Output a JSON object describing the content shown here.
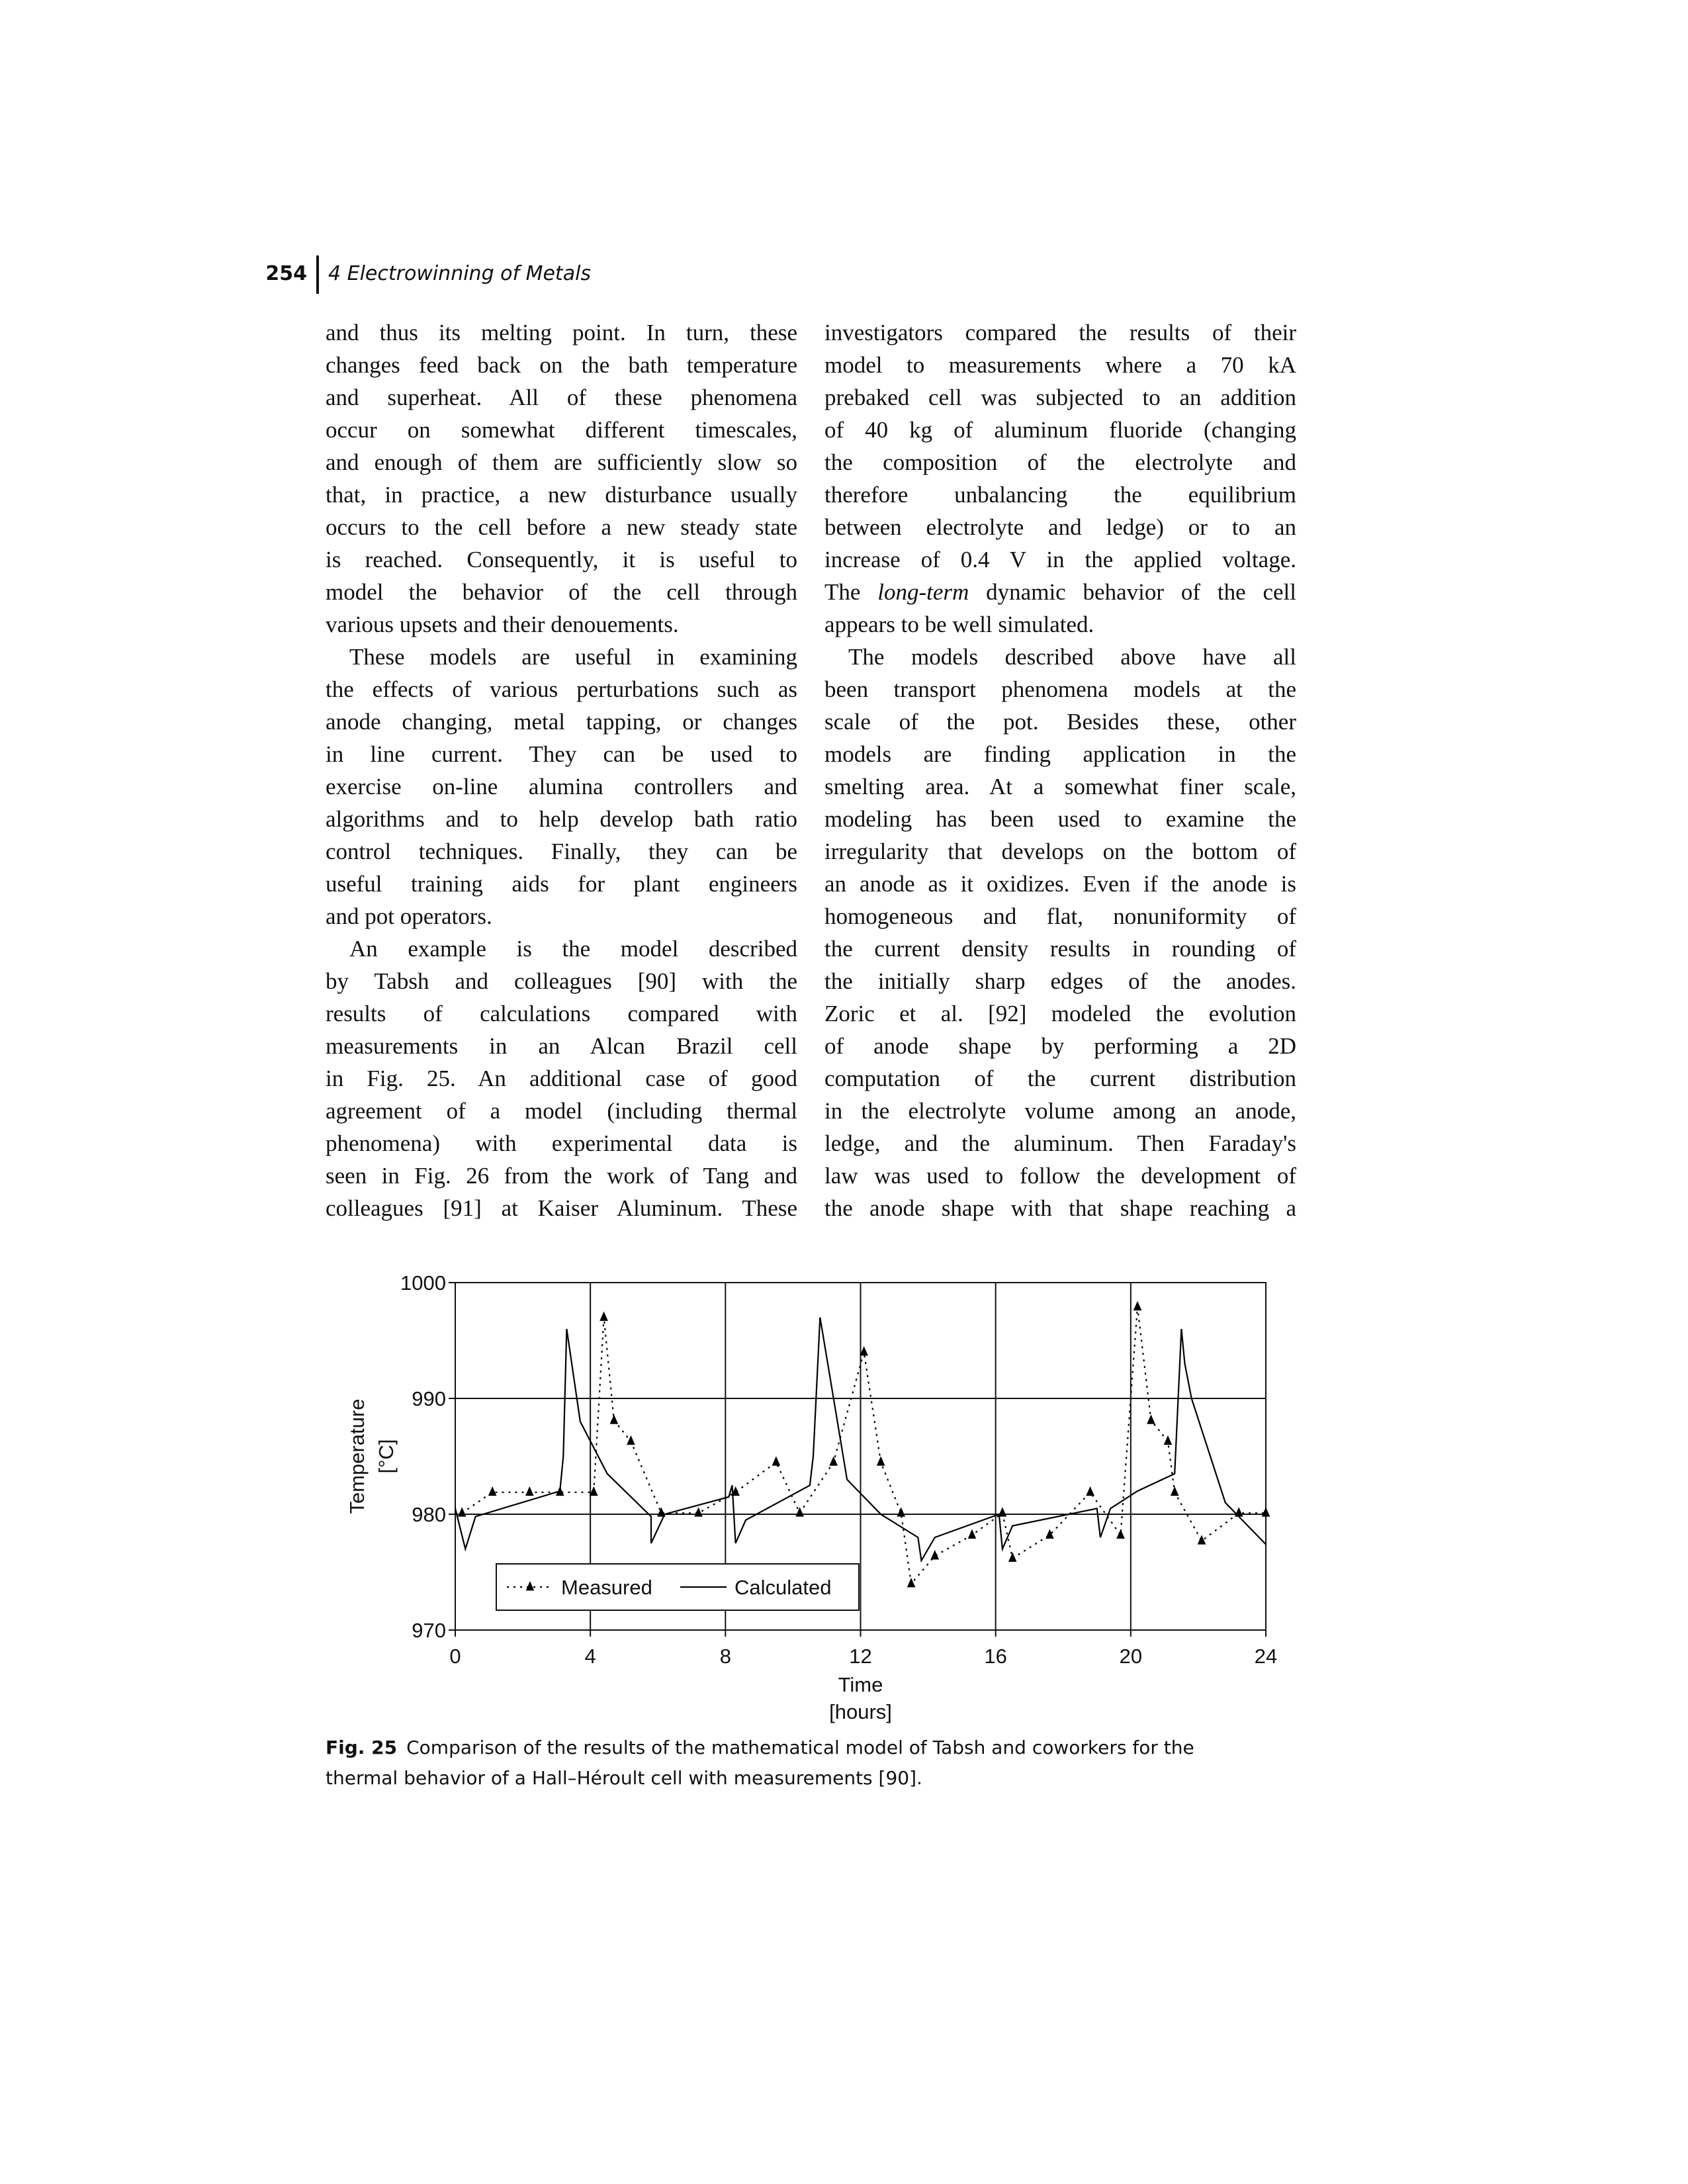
{
  "header": {
    "page_number": "254",
    "running_title": "4 Electrowinning of Metals"
  },
  "columns": [
    [
      [
        "and thus its melting point. In turn, these",
        "changes feed back on the bath temperature",
        "and superheat. All of these phenomena",
        "occur on somewhat different timescales,",
        "and enough of them are sufficiently slow so",
        "that, in practice, a new disturbance usually",
        "occurs to the cell before a new steady state",
        "is reached. Consequently, it is useful to",
        "model the behavior of the cell through",
        "various upsets and their denouements."
      ],
      [
        "These models are useful in examining",
        "the effects of various perturbations such as",
        "anode changing, metal tapping, or changes",
        "in line current. They can be used to",
        "exercise on-line alumina controllers and",
        "algorithms and to help develop bath ratio",
        "control techniques. Finally, they can be",
        "useful training aids for plant engineers",
        "and pot operators."
      ],
      [
        "An example is the model described",
        "by Tabsh and colleagues [90] with the",
        "results of calculations compared with",
        "measurements in an Alcan Brazil cell",
        "in Fig. 25. An additional case of good",
        "agreement of a model (including thermal",
        "phenomena) with experimental data is",
        "seen in Fig. 26 from the work of Tang and",
        "colleagues [91] at Kaiser Aluminum. These"
      ]
    ],
    [
      [
        "investigators compared the results of their",
        "model to measurements where a 70 kA",
        "prebaked cell was subjected to an addition",
        "of 40 kg of aluminum fluoride (changing",
        "the composition of the electrolyte and",
        "therefore unbalancing the equilibrium",
        "between electrolyte and ledge) or to an",
        "increase of 0.4 V in the applied voltage.",
        [
          "The ",
          "long-term",
          " dynamic behavior of the cell"
        ],
        "appears to be well simulated."
      ],
      [
        "The models described above have all",
        "been transport phenomena models at the",
        "scale of the pot. Besides these, other",
        "models are finding application in the",
        "smelting area. At a somewhat finer scale,",
        "modeling has been used to examine the",
        "irregularity that develops on the bottom of",
        "an anode as it oxidizes. Even if the anode is",
        "homogeneous and flat, nonuniformity of",
        "the current density results in rounding of",
        "the initially sharp edges of the anodes.",
        "Zoric et al. [92] modeled the evolution",
        "of anode shape by performing a 2D",
        "computation of the current distribution",
        "in the electrolyte volume among an anode,",
        "ledge, and the aluminum. Then Faraday's",
        "law was used to follow the development of",
        "the anode shape with that shape reaching a"
      ]
    ]
  ],
  "chart_data": {
    "type": "line",
    "xlabel": [
      "Time",
      "[hours]"
    ],
    "ylabel": [
      "Temperature",
      "[°C]"
    ],
    "xlim": [
      0,
      24
    ],
    "xticks": [
      0,
      4,
      8,
      12,
      16,
      20,
      24
    ],
    "ylim": [
      970,
      1000
    ],
    "yticks": [
      970,
      980,
      990,
      1000
    ],
    "grid": true,
    "legend": "lower left",
    "series": [
      {
        "name": "Measured",
        "color": "#000000",
        "line_style": "dotted",
        "marker": "triangle",
        "x": [
          0.2,
          1.1,
          2.2,
          3.1,
          4.1,
          4.4,
          4.7,
          5.2,
          6.1,
          7.2,
          8.3,
          9.5,
          10.2,
          11.2,
          12.1,
          12.6,
          13.2,
          13.5,
          14.2,
          15.3,
          16.2,
          16.5,
          17.6,
          18.8,
          19.7,
          20.2,
          20.6,
          21.1,
          21.3,
          22.1,
          23.2,
          24
        ],
        "values": [
          980.1,
          981.9,
          981.9,
          981.9,
          981.9,
          997,
          988.1,
          986.3,
          980.1,
          980.1,
          981.9,
          984.5,
          980.1,
          984.5,
          994,
          984.5,
          980.1,
          974,
          976.4,
          978.2,
          980.1,
          976.2,
          978.2,
          981.9,
          978.2,
          997.9,
          988.1,
          986.3,
          981.9,
          977.7,
          980.1,
          980.1
        ]
      },
      {
        "name": "Calculated",
        "color": "#000000",
        "line_style": "solid",
        "marker": "none",
        "x": [
          0,
          0.3,
          0.6,
          3.1,
          3.2,
          3.3,
          3.7,
          4.5,
          5.8,
          5.8,
          6.2,
          8.1,
          8.2,
          8.3,
          8.6,
          10.5,
          10.6,
          10.8,
          11.6,
          12.6,
          13.7,
          13.8,
          14.2,
          16.1,
          16.2,
          16.5,
          19.0,
          19.1,
          19.4,
          20.2,
          21.3,
          21.5,
          21.6,
          21.8,
          22.8,
          24
        ],
        "values": [
          980.5,
          977,
          979.8,
          982,
          985,
          996,
          988,
          983.5,
          979.8,
          977.5,
          980,
          981.5,
          982.5,
          977.5,
          979.5,
          982.5,
          985,
          997,
          983,
          980,
          978,
          976,
          978,
          980,
          977,
          979,
          980.5,
          978,
          980.5,
          982,
          983.5,
          996,
          993,
          990,
          981,
          977.4
        ]
      }
    ]
  },
  "caption": {
    "label": "Fig. 25",
    "text": "Comparison of the results of the mathematical model of Tabsh and coworkers for the thermal behavior of a Hall–Héroult cell with measurements [90]."
  }
}
